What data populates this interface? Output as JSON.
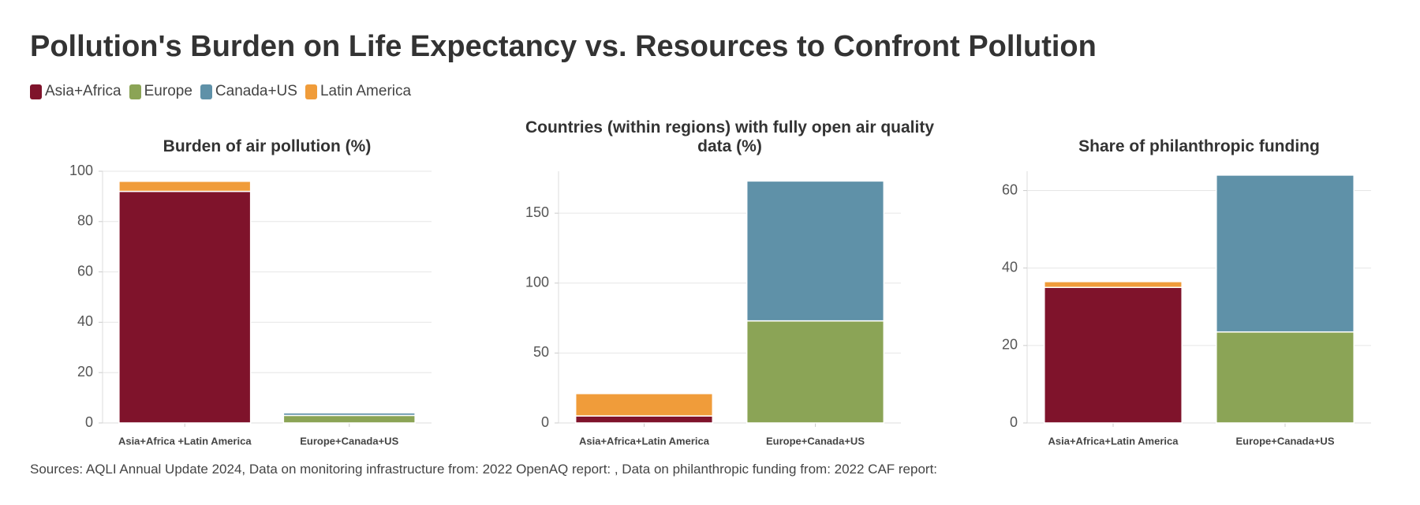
{
  "title": "Pollution's Burden on Life Expectancy vs. Resources to Confront Pollution",
  "source": "Sources: AQLI Annual Update 2024, Data on monitoring infrastructure from: 2022 OpenAQ report: , Data on philanthropic funding from: 2022 CAF report:",
  "chart_data": [
    {
      "type": "stacked-bar",
      "title": "Burden of air pollution (%)",
      "categories": [
        "Asia+Africa +Latin America",
        "Europe+Canada+US"
      ],
      "series": [
        {
          "name": "Asia+Africa",
          "color": "#7f132b",
          "values": [
            92,
            null
          ]
        },
        {
          "name": "Europe",
          "color": "#8ba456",
          "values": [
            null,
            3
          ]
        },
        {
          "name": "Canada+US",
          "color": "#5f91a8",
          "values": [
            null,
            1
          ]
        },
        {
          "name": "Latin America",
          "color": "#f09c3a",
          "values": [
            4,
            null
          ]
        }
      ],
      "ylim": [
        0,
        100
      ],
      "yticks": [
        0,
        20,
        40,
        60,
        80,
        100
      ],
      "grid": true
    },
    {
      "type": "stacked-bar",
      "title": "Countries (within regions) with fully open air quality data (%)",
      "categories": [
        "Asia+Africa+Latin America",
        "Europe+Canada+US"
      ],
      "series": [
        {
          "name": "Asia+Africa",
          "color": "#7f132b",
          "values": [
            5,
            null
          ]
        },
        {
          "name": "Europe",
          "color": "#8ba456",
          "values": [
            null,
            73
          ]
        },
        {
          "name": "Canada+US",
          "color": "#5f91a8",
          "values": [
            null,
            100
          ]
        },
        {
          "name": "Latin America",
          "color": "#f09c3a",
          "values": [
            16,
            null
          ]
        }
      ],
      "ylim": [
        0,
        180
      ],
      "yticks": [
        0,
        50,
        100,
        150
      ],
      "grid": true
    },
    {
      "type": "stacked-bar",
      "title": "Share of philanthropic funding",
      "categories": [
        "Asia+Africa+Latin America",
        "Europe+Canada+US"
      ],
      "series": [
        {
          "name": "Asia+Africa",
          "color": "#7f132b",
          "values": [
            35,
            null
          ]
        },
        {
          "name": "Europe",
          "color": "#8ba456",
          "values": [
            null,
            23.5
          ]
        },
        {
          "name": "Canada+US",
          "color": "#5f91a8",
          "values": [
            null,
            40.5
          ]
        },
        {
          "name": "Latin America",
          "color": "#f09c3a",
          "values": [
            1.5,
            null
          ]
        }
      ],
      "ylim": [
        0,
        65
      ],
      "yticks": [
        0,
        20,
        40,
        60
      ],
      "grid": true
    }
  ]
}
